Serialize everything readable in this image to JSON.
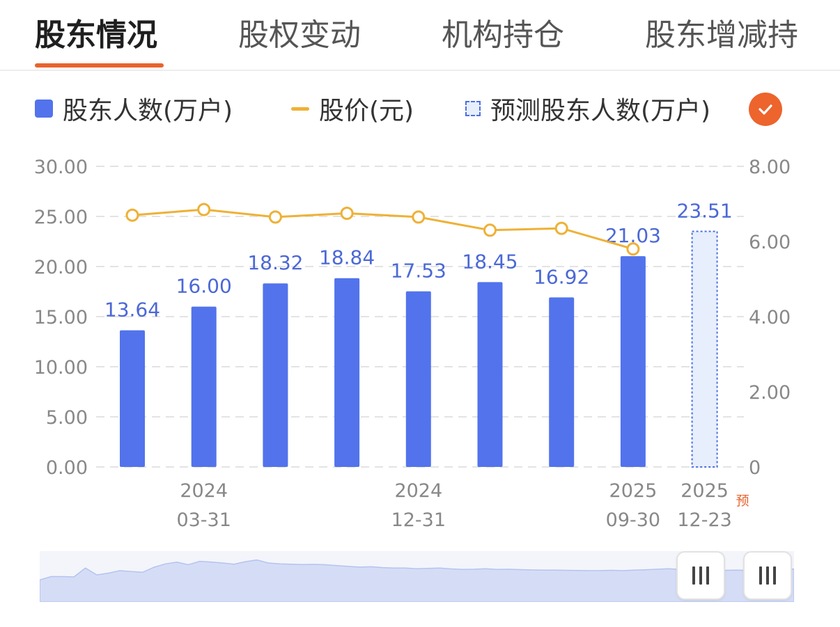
{
  "tabs": [
    {
      "label": "股东情况",
      "active": true
    },
    {
      "label": "股权变动",
      "active": false
    },
    {
      "label": "机构持仓",
      "active": false
    },
    {
      "label": "股东增减持",
      "active": false
    }
  ],
  "legend": {
    "holders_label": "股东人数(万户)",
    "price_label": "股价(元)",
    "forecast_label": "预测股东人数(万户)"
  },
  "colors": {
    "bar": "#5273ec",
    "line": "#eeb136",
    "forecast_fill": "#e7eefc",
    "forecast_border": "#4b70e2",
    "accent": "#e8632c",
    "label": "#4b68d6",
    "axis_text": "#888888"
  },
  "icons": {
    "check": "check-icon",
    "handle": "grip-icon"
  },
  "chart_data": {
    "type": "bar",
    "series": [
      {
        "name": "股东人数(万户)",
        "type": "bar",
        "axis": "left",
        "values": [
          13.64,
          16.0,
          18.32,
          18.84,
          17.53,
          18.45,
          16.92,
          21.03,
          null
        ]
      },
      {
        "name": "股价(元)",
        "type": "line",
        "axis": "right",
        "values": [
          6.7,
          6.85,
          6.65,
          6.75,
          6.65,
          6.3,
          6.35,
          5.8,
          null
        ]
      },
      {
        "name": "预测股东人数(万户)",
        "type": "bar",
        "axis": "left",
        "values": [
          null,
          null,
          null,
          null,
          null,
          null,
          null,
          null,
          23.51
        ]
      }
    ],
    "x_labels": [
      {
        "index": 1,
        "line1": "2024",
        "line2": "03-31"
      },
      {
        "index": 4,
        "line1": "2024",
        "line2": "12-31"
      },
      {
        "index": 7,
        "line1": "2025",
        "line2": "09-30"
      },
      {
        "index": 8,
        "line1": "2025",
        "line2": "12-23",
        "tag": "预"
      }
    ],
    "left_axis": {
      "ticks": [
        "0.00",
        "5.00",
        "10.00",
        "15.00",
        "20.00",
        "25.00",
        "30.00"
      ],
      "ylim": [
        0,
        30
      ]
    },
    "right_axis": {
      "ticks": [
        "0",
        "2.00",
        "4.00",
        "6.00",
        "8.00"
      ],
      "ylim": [
        0,
        8
      ]
    },
    "grid": true,
    "legend_position": "top"
  },
  "overview": {
    "sparkline": [
      13,
      15,
      15,
      14.8,
      20,
      16,
      17,
      18.5,
      18,
      17.5,
      20.5,
      22.5,
      23.5,
      22,
      24,
      23.6,
      23,
      22.3,
      23.8,
      24.8,
      23,
      22.5,
      22.3,
      22.1,
      22.2,
      22,
      21.5,
      21,
      20.6,
      20.8,
      20.3,
      20,
      20,
      19.6,
      19.8,
      20,
      19.5,
      19.2,
      19.3,
      19.6,
      19.2,
      19.3,
      19.1,
      18.9,
      18.8,
      18.8,
      18.7,
      18.6,
      18.5,
      18.5,
      18.7,
      18.5,
      18.8,
      19,
      19.3,
      19.6,
      19.2,
      19,
      18.8,
      18.8,
      18.7,
      18.8,
      18.6,
      19.5,
      19.2,
      19.6,
      19.4
    ]
  }
}
